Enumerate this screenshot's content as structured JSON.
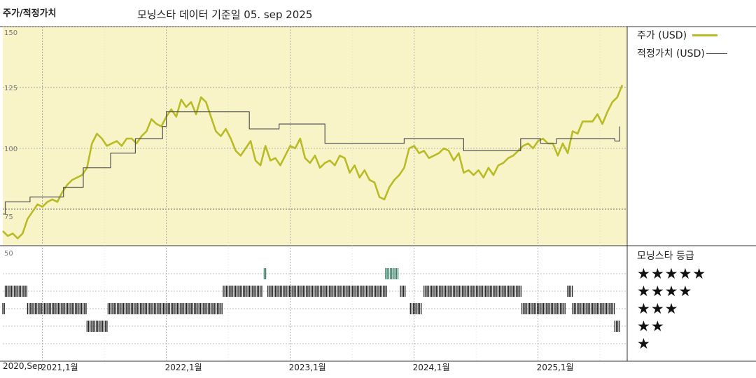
{
  "header": {
    "title": "주가/적정가치",
    "subtitle": "모닝스타 데이터 기준일 05. sep 2025"
  },
  "legend": [
    {
      "label": "주가 (USD)",
      "color": "#b8bb26"
    },
    {
      "label": "적정가치 (USD)",
      "color": "#555555"
    }
  ],
  "rating_panel": {
    "title": "모닝스타 등급",
    "y_tick": "50",
    "rows": [
      {
        "stars": "★★★★★",
        "level": 5
      },
      {
        "stars": "★★★★",
        "level": 4
      },
      {
        "stars": "★★★",
        "level": 3
      },
      {
        "stars": "★★",
        "level": 2
      },
      {
        "stars": "★",
        "level": 1
      }
    ],
    "segments": [
      {
        "level": 4,
        "start": 2020.7,
        "end": 2020.88
      },
      {
        "level": 3,
        "start": 2020.68,
        "end": 2020.7
      },
      {
        "level": 3,
        "start": 2020.88,
        "end": 2021.36
      },
      {
        "level": 2,
        "start": 2021.36,
        "end": 2021.53
      },
      {
        "level": 3,
        "start": 2021.53,
        "end": 2022.46
      },
      {
        "level": 4,
        "start": 2022.46,
        "end": 2022.78
      },
      {
        "level": 5,
        "start": 2022.79,
        "end": 2022.81
      },
      {
        "level": 4,
        "start": 2022.82,
        "end": 2023.78
      },
      {
        "level": 5,
        "start": 2023.77,
        "end": 2023.88
      },
      {
        "level": 4,
        "start": 2023.89,
        "end": 2023.93
      },
      {
        "level": 3,
        "start": 2023.97,
        "end": 2024.06
      },
      {
        "level": 4,
        "start": 2024.08,
        "end": 2024.87
      },
      {
        "level": 3,
        "start": 2024.87,
        "end": 2025.22
      },
      {
        "level": 4,
        "start": 2025.24,
        "end": 2025.28
      },
      {
        "level": 3,
        "start": 2025.28,
        "end": 2025.62
      },
      {
        "level": 2,
        "start": 2025.62,
        "end": 2025.66
      }
    ]
  },
  "chart_data": {
    "type": "line",
    "title": "주가/적정가치",
    "ylim": [
      60,
      150
    ],
    "yticks": [
      "75",
      "100",
      "125",
      "150"
    ],
    "xlim": [
      2020.68,
      2025.72
    ],
    "x_ticks": [
      {
        "label": "2020,Sep",
        "x": 2020.68
      },
      {
        "label": "2021,1월",
        "x": 2021.0
      },
      {
        "label": "2022,1월",
        "x": 2022.0
      },
      {
        "label": "2023,1월",
        "x": 2023.0
      },
      {
        "label": "2024,1월",
        "x": 2024.0
      },
      {
        "label": "2025,1월",
        "x": 2025.0
      }
    ],
    "series": [
      {
        "name": "주가 (USD)",
        "color": "#b8bb26",
        "points": [
          [
            2020.68,
            66
          ],
          [
            2020.72,
            64
          ],
          [
            2020.76,
            65
          ],
          [
            2020.8,
            63
          ],
          [
            2020.84,
            65
          ],
          [
            2020.88,
            71
          ],
          [
            2020.92,
            74
          ],
          [
            2020.96,
            77
          ],
          [
            2021.0,
            76
          ],
          [
            2021.04,
            78
          ],
          [
            2021.08,
            79
          ],
          [
            2021.12,
            78
          ],
          [
            2021.16,
            82
          ],
          [
            2021.2,
            85
          ],
          [
            2021.24,
            87
          ],
          [
            2021.28,
            88
          ],
          [
            2021.32,
            89
          ],
          [
            2021.36,
            92
          ],
          [
            2021.4,
            102
          ],
          [
            2021.44,
            106
          ],
          [
            2021.48,
            104
          ],
          [
            2021.52,
            101
          ],
          [
            2021.56,
            102
          ],
          [
            2021.6,
            103
          ],
          [
            2021.64,
            101
          ],
          [
            2021.68,
            104
          ],
          [
            2021.72,
            104
          ],
          [
            2021.76,
            102
          ],
          [
            2021.8,
            105
          ],
          [
            2021.84,
            107
          ],
          [
            2021.88,
            112
          ],
          [
            2021.92,
            110
          ],
          [
            2021.96,
            109
          ],
          [
            2022.0,
            113
          ],
          [
            2022.04,
            116
          ],
          [
            2022.08,
            113
          ],
          [
            2022.12,
            120
          ],
          [
            2022.16,
            117
          ],
          [
            2022.2,
            119
          ],
          [
            2022.24,
            114
          ],
          [
            2022.28,
            121
          ],
          [
            2022.32,
            119
          ],
          [
            2022.36,
            113
          ],
          [
            2022.4,
            107
          ],
          [
            2022.44,
            105
          ],
          [
            2022.48,
            108
          ],
          [
            2022.52,
            104
          ],
          [
            2022.56,
            99
          ],
          [
            2022.6,
            97
          ],
          [
            2022.64,
            100
          ],
          [
            2022.68,
            103
          ],
          [
            2022.72,
            95
          ],
          [
            2022.76,
            93
          ],
          [
            2022.8,
            101
          ],
          [
            2022.84,
            95
          ],
          [
            2022.88,
            96
          ],
          [
            2022.92,
            93
          ],
          [
            2022.96,
            97
          ],
          [
            2023.0,
            101
          ],
          [
            2023.04,
            100
          ],
          [
            2023.08,
            104
          ],
          [
            2023.12,
            96
          ],
          [
            2023.16,
            94
          ],
          [
            2023.2,
            97
          ],
          [
            2023.24,
            92
          ],
          [
            2023.28,
            94
          ],
          [
            2023.32,
            95
          ],
          [
            2023.36,
            93
          ],
          [
            2023.4,
            97
          ],
          [
            2023.44,
            96
          ],
          [
            2023.48,
            90
          ],
          [
            2023.52,
            93
          ],
          [
            2023.56,
            88
          ],
          [
            2023.6,
            91
          ],
          [
            2023.64,
            87
          ],
          [
            2023.68,
            86
          ],
          [
            2023.72,
            80
          ],
          [
            2023.76,
            79
          ],
          [
            2023.8,
            84
          ],
          [
            2023.84,
            87
          ],
          [
            2023.88,
            89
          ],
          [
            2023.92,
            92
          ],
          [
            2023.96,
            100
          ],
          [
            2024.0,
            101
          ],
          [
            2024.04,
            98
          ],
          [
            2024.08,
            99
          ],
          [
            2024.12,
            96
          ],
          [
            2024.16,
            97
          ],
          [
            2024.2,
            98
          ],
          [
            2024.24,
            100
          ],
          [
            2024.28,
            99
          ],
          [
            2024.32,
            95
          ],
          [
            2024.36,
            98
          ],
          [
            2024.4,
            90
          ],
          [
            2024.44,
            91
          ],
          [
            2024.48,
            89
          ],
          [
            2024.52,
            91
          ],
          [
            2024.56,
            88
          ],
          [
            2024.6,
            92
          ],
          [
            2024.64,
            89
          ],
          [
            2024.68,
            93
          ],
          [
            2024.72,
            94
          ],
          [
            2024.76,
            96
          ],
          [
            2024.8,
            97
          ],
          [
            2024.84,
            99
          ],
          [
            2024.88,
            101
          ],
          [
            2024.92,
            102
          ],
          [
            2024.96,
            100
          ],
          [
            2025.0,
            103
          ],
          [
            2025.04,
            104
          ],
          [
            2025.08,
            102
          ],
          [
            2025.12,
            102
          ],
          [
            2025.16,
            97
          ],
          [
            2025.2,
            102
          ],
          [
            2025.24,
            98
          ],
          [
            2025.28,
            107
          ],
          [
            2025.32,
            106
          ],
          [
            2025.36,
            111
          ],
          [
            2025.4,
            111
          ],
          [
            2025.44,
            111
          ],
          [
            2025.48,
            114
          ],
          [
            2025.52,
            110
          ],
          [
            2025.56,
            115
          ],
          [
            2025.6,
            119
          ],
          [
            2025.64,
            121
          ],
          [
            2025.68,
            126
          ]
        ]
      },
      {
        "name": "적정가치 (USD)",
        "color": "#555555",
        "points": [
          [
            2020.68,
            73
          ],
          [
            2020.7,
            73
          ],
          [
            2020.7,
            78
          ],
          [
            2020.9,
            78
          ],
          [
            2020.9,
            80
          ],
          [
            2021.17,
            80
          ],
          [
            2021.17,
            84
          ],
          [
            2021.33,
            84
          ],
          [
            2021.33,
            92
          ],
          [
            2021.55,
            92
          ],
          [
            2021.55,
            98
          ],
          [
            2021.75,
            98
          ],
          [
            2021.75,
            104
          ],
          [
            2021.97,
            104
          ],
          [
            2021.97,
            109
          ],
          [
            2022.0,
            109
          ],
          [
            2022.0,
            115
          ],
          [
            2022.67,
            115
          ],
          [
            2022.67,
            108
          ],
          [
            2022.91,
            108
          ],
          [
            2022.91,
            110
          ],
          [
            2023.28,
            110
          ],
          [
            2023.28,
            102
          ],
          [
            2023.92,
            102
          ],
          [
            2023.92,
            104
          ],
          [
            2024.4,
            104
          ],
          [
            2024.4,
            99
          ],
          [
            2024.86,
            99
          ],
          [
            2024.86,
            104
          ],
          [
            2025.02,
            104
          ],
          [
            2025.02,
            102
          ],
          [
            2025.15,
            102
          ],
          [
            2025.15,
            104
          ],
          [
            2025.62,
            104
          ],
          [
            2025.62,
            103
          ],
          [
            2025.66,
            103
          ],
          [
            2025.66,
            109
          ]
        ]
      }
    ]
  }
}
